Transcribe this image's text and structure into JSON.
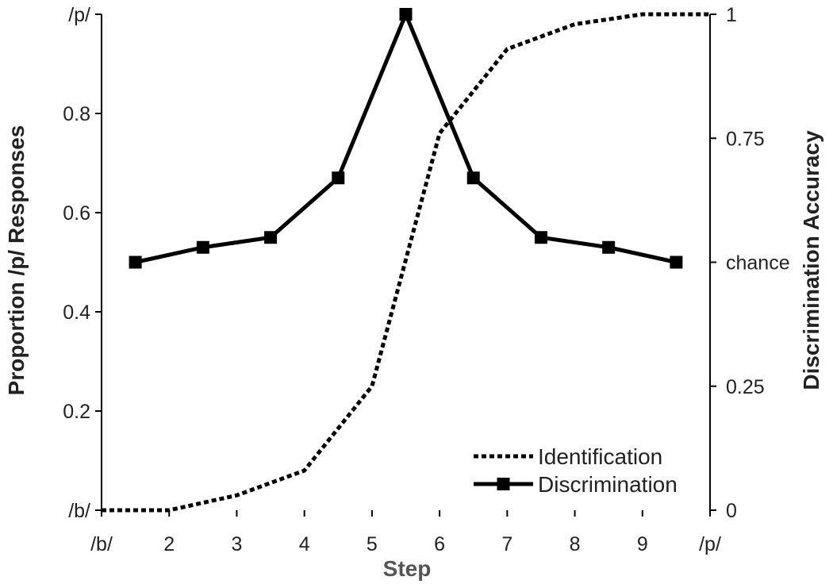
{
  "chart_data": {
    "type": "line",
    "xlabel": "Step",
    "ylabel_left": "Proportion /p/ Responses",
    "ylabel_right": "Discrimination Accuracy",
    "x_ticks": [
      "/b/",
      "2",
      "3",
      "4",
      "5",
      "6",
      "7",
      "8",
      "9",
      "/p/"
    ],
    "y_left_ticks": [
      "/b/",
      "0.2",
      "0.4",
      "0.6",
      "0.8",
      "/p/"
    ],
    "y_left_lim": [
      0,
      1
    ],
    "y_right_ticks": [
      "0",
      "0.25",
      "chance",
      "0.75",
      "1"
    ],
    "y_right_lim": [
      0,
      1
    ],
    "grid": false,
    "legend_position": "bottom-right",
    "series": [
      {
        "name": "Identification",
        "axis": "left",
        "style": "dotted",
        "color": "#000000",
        "x": [
          1,
          2,
          3,
          4,
          5,
          6,
          7,
          8,
          9,
          10
        ],
        "values": [
          0.0,
          0.0,
          0.03,
          0.08,
          0.25,
          0.76,
          0.93,
          0.98,
          1.0,
          1.0
        ]
      },
      {
        "name": "Discrimination",
        "axis": "right",
        "style": "solid-square-markers",
        "color": "#000000",
        "x": [
          1.5,
          2.5,
          3.5,
          4.5,
          5.5,
          6.5,
          7.5,
          8.5,
          9.5
        ],
        "values": [
          0.5,
          0.53,
          0.55,
          0.67,
          1.0,
          0.67,
          0.55,
          0.53,
          0.5
        ]
      }
    ]
  }
}
